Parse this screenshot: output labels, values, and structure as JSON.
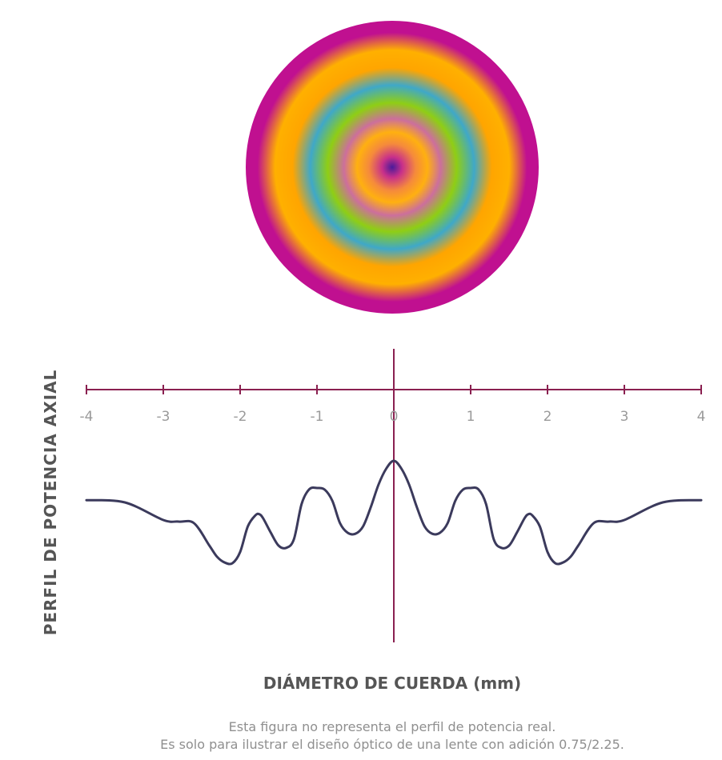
{
  "colors": {
    "axis": "#8a2050",
    "curve": "#3b3a5c",
    "tick_text": "#9a9a9a",
    "title_text": "#555555",
    "disc_rings": [
      "#4a1a9a",
      "#c8308a",
      "#f58a3c",
      "#ffb010",
      "#cc6f9c",
      "#8fce14",
      "#3fa8c8",
      "#ffa500",
      "#ffb000",
      "#c01090"
    ]
  },
  "chart_data": {
    "type": "line",
    "xlabel": "DIÁMETRO DE CUERDA (mm)",
    "ylabel": "PERFIL DE POTENCIA AXIAL",
    "xlim": [
      -4,
      4
    ],
    "x_ticks": [
      "-4",
      "-3",
      "-2",
      "-1",
      "0",
      "1",
      "2",
      "3",
      "4"
    ],
    "grid": false,
    "series": [
      {
        "x": [
          -4,
          -3.5,
          -3,
          -2.8,
          -2.6,
          -2.4,
          -2.3,
          -2.2,
          -2.1,
          -2.0,
          -1.9,
          -1.8,
          -1.75,
          -1.7,
          -1.6,
          -1.5,
          -1.4,
          -1.3,
          -1.2,
          -1.1,
          -1.0,
          -0.9,
          -0.8,
          -0.7,
          -0.6,
          -0.5,
          -0.4,
          -0.3,
          -0.2,
          -0.1,
          0,
          0.1,
          0.2,
          0.3,
          0.4,
          0.5,
          0.6,
          0.7,
          0.8,
          0.9,
          1.0,
          1.1,
          1.2,
          1.3,
          1.4,
          1.5,
          1.6,
          1.7,
          1.75,
          1.8,
          1.9,
          2.0,
          2.1,
          2.2,
          2.3,
          2.4,
          2.6,
          2.8,
          3,
          3.5,
          4
        ],
        "y": [
          0.62,
          0.55,
          0.0,
          -0.05,
          -0.1,
          -0.8,
          -1.15,
          -1.33,
          -1.35,
          -1.0,
          -0.2,
          0.15,
          0.18,
          0.05,
          -0.4,
          -0.8,
          -0.87,
          -0.6,
          0.5,
          0.96,
          1.0,
          0.95,
          0.6,
          -0.1,
          -0.4,
          -0.43,
          -0.2,
          0.4,
          1.1,
          1.6,
          1.85,
          1.6,
          1.1,
          0.4,
          -0.2,
          -0.43,
          -0.4,
          -0.1,
          0.6,
          0.95,
          1.0,
          0.96,
          0.5,
          -0.6,
          -0.87,
          -0.8,
          -0.4,
          0.05,
          0.18,
          0.15,
          -0.2,
          -1.0,
          -1.35,
          -1.33,
          -1.15,
          -0.8,
          -0.1,
          -0.05,
          0.0,
          0.55,
          0.62
        ]
      }
    ]
  },
  "notes": {
    "line1": "Esta figura no representa el perfil de potencia real.",
    "line2": "Es solo para ilustrar el diseño óptico de una lente con adición 0.75/2.25."
  }
}
